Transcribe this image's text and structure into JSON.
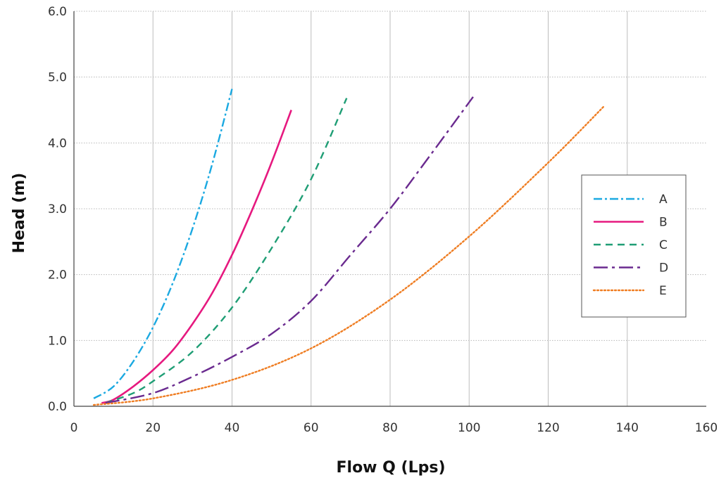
{
  "chart_data": {
    "type": "line",
    "title": "",
    "xlabel": "Flow Q (Lps)",
    "ylabel": "Head (m)",
    "xlim": [
      0,
      160
    ],
    "ylim": [
      0,
      6
    ],
    "x_ticks": [
      "0",
      "20",
      "40",
      "60",
      "80",
      "100",
      "120",
      "140",
      "160"
    ],
    "y_ticks": [
      "0.0",
      "1.0",
      "2.0",
      "3.0",
      "4.0",
      "5.0",
      "6.0"
    ],
    "grid": "vertical major, horizontal dotted",
    "legend_position": "right",
    "series": [
      {
        "name": "A",
        "color": "#1ba9e1",
        "dash": "dash-dot",
        "x": [
          5,
          10,
          15,
          20,
          25,
          30,
          35,
          40
        ],
        "y": [
          0.12,
          0.3,
          0.68,
          1.2,
          1.87,
          2.7,
          3.68,
          4.82
        ]
      },
      {
        "name": "B",
        "color": "#e6197f",
        "dash": "solid",
        "x": [
          7,
          10,
          15,
          20,
          25,
          30,
          35,
          40,
          45,
          50,
          55
        ],
        "y": [
          0.05,
          0.1,
          0.3,
          0.55,
          0.85,
          1.25,
          1.72,
          2.3,
          2.97,
          3.7,
          4.5
        ]
      },
      {
        "name": "C",
        "color": "#1f9e75",
        "dash": "dashed",
        "x": [
          8,
          15,
          20,
          30,
          40,
          50,
          60,
          69
        ],
        "y": [
          0.05,
          0.2,
          0.38,
          0.83,
          1.5,
          2.4,
          3.45,
          4.68
        ]
      },
      {
        "name": "D",
        "color": "#6a2a8f",
        "dash": "long-dash-dot",
        "x": [
          8,
          20,
          30,
          40,
          50,
          60,
          70,
          80,
          90,
          101
        ],
        "y": [
          0.05,
          0.2,
          0.45,
          0.75,
          1.1,
          1.6,
          2.3,
          3.0,
          3.8,
          4.7
        ]
      },
      {
        "name": "E",
        "color": "#ef7d22",
        "dash": "dotted",
        "x": [
          5,
          20,
          40,
          60,
          80,
          100,
          120,
          134
        ],
        "y": [
          0.02,
          0.12,
          0.4,
          0.88,
          1.62,
          2.58,
          3.7,
          4.55
        ]
      }
    ]
  }
}
